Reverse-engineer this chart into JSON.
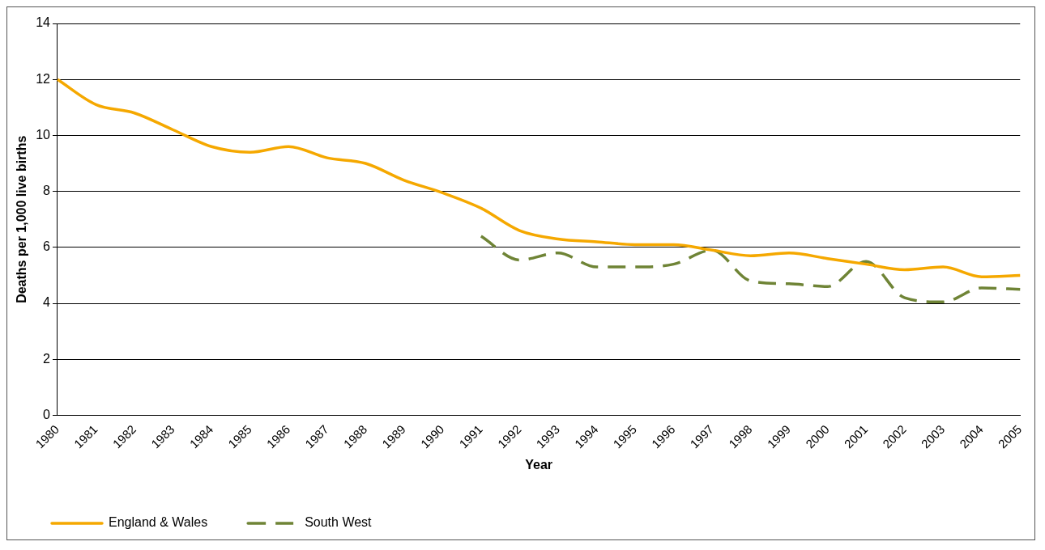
{
  "chart_data": {
    "type": "line",
    "xlabel": "Year",
    "ylabel": "Deaths per 1,000 live births",
    "categories": [
      "1980",
      "1981",
      "1982",
      "1983",
      "1984",
      "1985",
      "1986",
      "1987",
      "1988",
      "1989",
      "1990",
      "1991",
      "1992",
      "1993",
      "1994",
      "1995",
      "1996",
      "1997",
      "1998",
      "1999",
      "2000",
      "2001",
      "2002",
      "2003",
      "2004",
      "2005"
    ],
    "series": [
      {
        "name": "England & Wales",
        "color": "#f5a800",
        "line_style": "solid",
        "values": [
          12.0,
          11.1,
          10.8,
          10.2,
          9.6,
          9.4,
          9.6,
          9.2,
          9.0,
          8.4,
          7.95,
          7.4,
          6.6,
          6.3,
          6.2,
          6.1,
          6.1,
          5.9,
          5.7,
          5.8,
          5.6,
          5.4,
          5.2,
          5.3,
          4.95,
          5.0
        ]
      },
      {
        "name": "South West",
        "color": "#6f8436",
        "line_style": "dashed",
        "values": [
          null,
          null,
          null,
          null,
          null,
          null,
          null,
          null,
          null,
          null,
          null,
          6.4,
          5.55,
          5.8,
          5.3,
          5.3,
          5.4,
          5.9,
          4.8,
          4.7,
          4.6,
          5.5,
          4.2,
          4.05,
          4.55,
          4.5
        ]
      }
    ],
    "ylim": [
      0,
      14
    ],
    "yticks": [
      0,
      2,
      4,
      6,
      8,
      10,
      12,
      14
    ],
    "grid": "y",
    "legend": "bottom left",
    "marker": "none"
  }
}
